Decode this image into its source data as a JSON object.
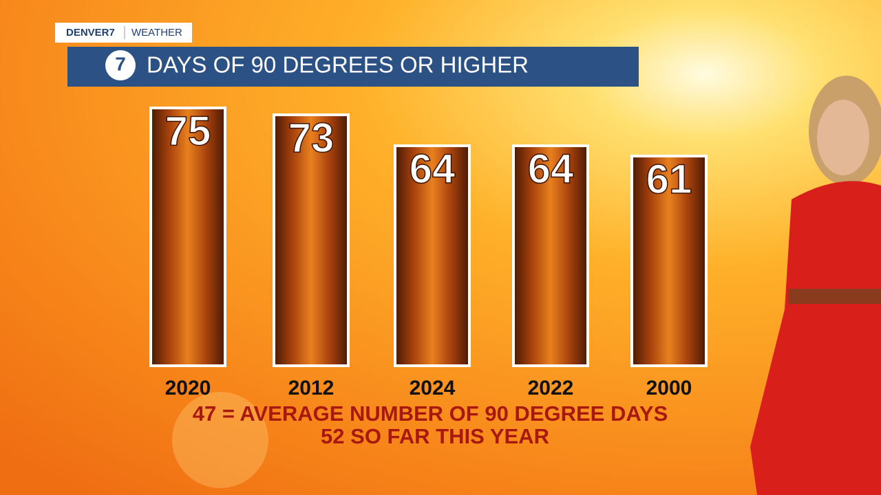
{
  "brand": {
    "station": "DENVER7",
    "section": "WEATHER",
    "logo": "7"
  },
  "chart_data": {
    "type": "bar",
    "title": "DAYS OF 90 DEGREES OR HIGHER",
    "categories": [
      "2020",
      "2012",
      "2024",
      "2022",
      "2000"
    ],
    "values": [
      75,
      73,
      64,
      64,
      61
    ],
    "annotations": [
      "47 = AVERAGE NUMBER OF 90 DEGREE DAYS",
      "52 SO FAR THIS YEAR"
    ]
  }
}
